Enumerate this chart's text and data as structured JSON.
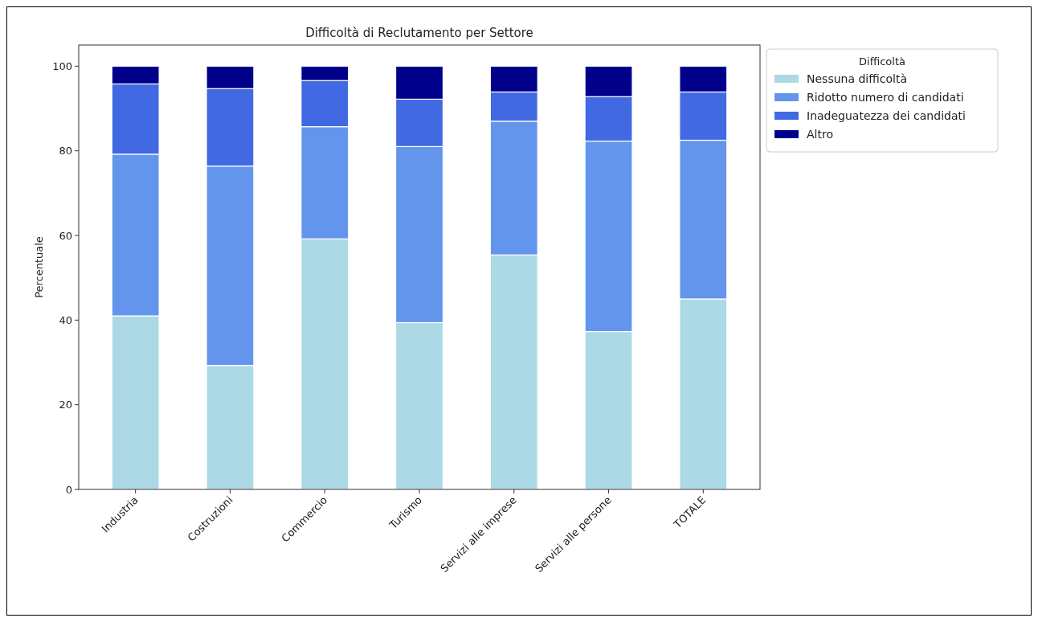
{
  "chart_data": {
    "type": "bar",
    "title": "Difficoltà di Reclutamento per Settore",
    "ylabel": "Percentuale",
    "legend_title": "Difficoltà",
    "categories": [
      "Industria",
      "Costruzioni",
      "Commercio",
      "Turismo",
      "Servizi alle imprese",
      "Servizi alle persone",
      "TOTALE"
    ],
    "series": [
      {
        "name": "Nessuna difficoltà",
        "color": "#add8e6",
        "values": [
          41,
          29.3,
          59.2,
          39.4,
          55.4,
          37.3,
          45
        ]
      },
      {
        "name": "Ridotto numero di candidati",
        "color": "#6495ed",
        "values": [
          38.2,
          47.1,
          26.5,
          41.6,
          31.6,
          45,
          37.5
        ]
      },
      {
        "name": "Inadeguatezza dei candidati",
        "color": "#4169e1",
        "values": [
          16.6,
          18.3,
          10.9,
          11.2,
          6.9,
          10.5,
          11.4
        ]
      },
      {
        "name": "Altro",
        "color": "#00008b",
        "values": [
          4.2,
          5.3,
          3.4,
          7.8,
          6.1,
          7.2,
          6.1
        ]
      }
    ],
    "stacked": true,
    "ylim": [
      0,
      105
    ],
    "yticks": [
      0,
      20,
      40,
      60,
      80,
      100
    ],
    "legend": "top right",
    "grid": false
  }
}
